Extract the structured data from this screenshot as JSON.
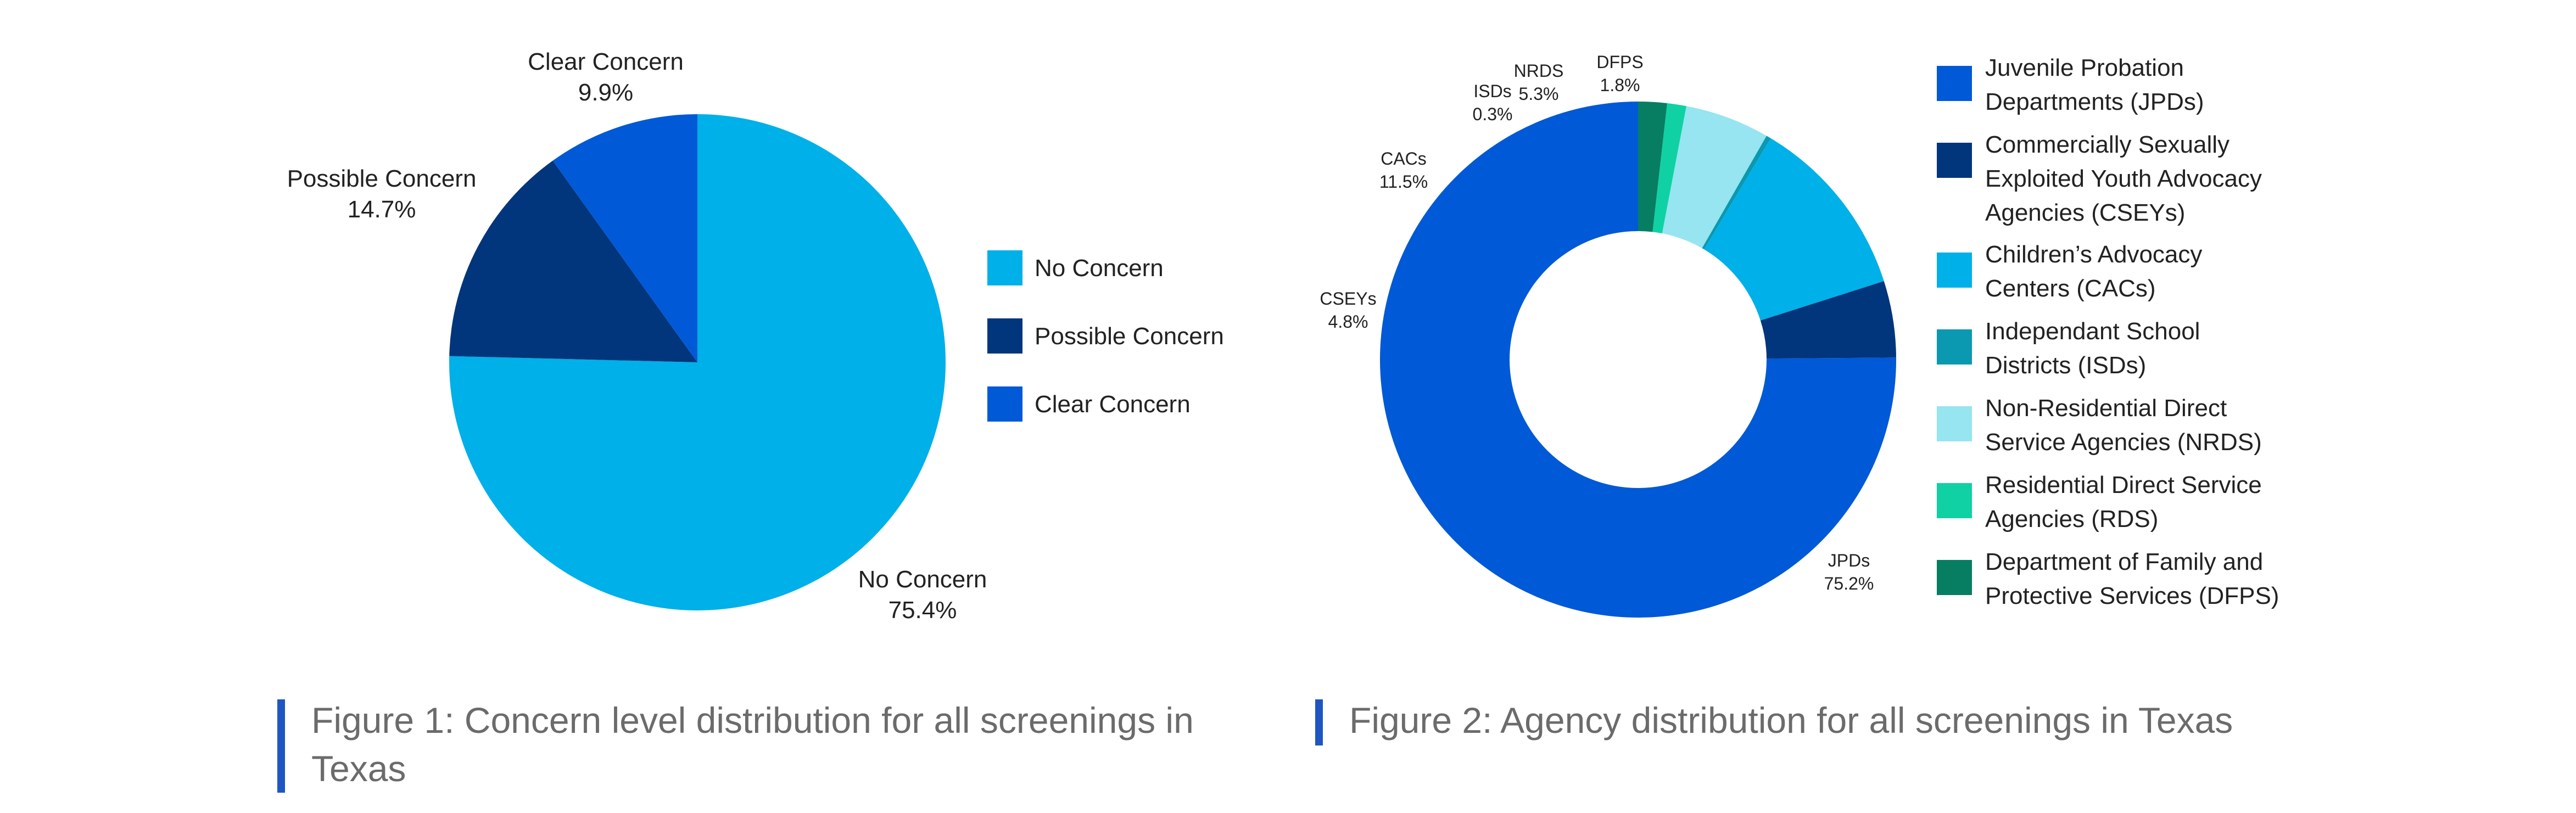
{
  "chart_data": [
    {
      "type": "pie",
      "title": "Figure 1: Concern level distribution for all screenings in Texas",
      "series": [
        {
          "name": "No Concern",
          "label": "No Concern",
          "value": 75.4,
          "display": "75.4%",
          "color": "#00b0e8"
        },
        {
          "name": "Possible Concern",
          "label": "Possible Concern",
          "value": 14.7,
          "display": "14.7%",
          "color": "#01357c"
        },
        {
          "name": "Clear Concern",
          "label": "Clear Concern",
          "value": 9.9,
          "display": "9.9%",
          "color": "#0059d6"
        }
      ],
      "legend": [
        {
          "label": "No Concern",
          "color": "#00b0e8"
        },
        {
          "label": "Possible Concern",
          "color": "#01357c"
        },
        {
          "label": "Clear Concern",
          "color": "#0059d6"
        }
      ],
      "legend_position": "right"
    },
    {
      "type": "pie",
      "subtype": "donut",
      "title": "Figure 2: Agency distribution for all screenings in Texas",
      "series": [
        {
          "name": "JPDs",
          "label": "JPDs",
          "value": 75.2,
          "display": "75.2%",
          "color": "#0059d6"
        },
        {
          "name": "CSEYs",
          "label": "CSEYs",
          "value": 4.8,
          "display": "4.8%",
          "color": "#01357c"
        },
        {
          "name": "CACs",
          "label": "CACs",
          "value": 11.5,
          "display": "11.5%",
          "color": "#00b0e8"
        },
        {
          "name": "ISDs",
          "label": "ISDs",
          "value": 0.3,
          "display": "0.3%",
          "color": "#0a99b0"
        },
        {
          "name": "NRDS",
          "label": "NRDS",
          "value": 5.3,
          "display": "5.3%",
          "color": "#96e5f0"
        },
        {
          "name": "RDS",
          "label": "",
          "value": 1.2,
          "display": "",
          "color": "#10d1a3"
        },
        {
          "name": "DFPS",
          "label": "DFPS",
          "value": 1.8,
          "display": "1.8%",
          "color": "#077e62"
        }
      ],
      "legend": [
        {
          "lines": [
            "Juvenile Probation",
            "Departments (JPDs)"
          ],
          "color": "#0059d6"
        },
        {
          "lines": [
            "Commercially Sexually",
            "Exploited Youth Advocacy",
            "Agencies (CSEYs)"
          ],
          "color": "#01357c"
        },
        {
          "lines": [
            "Children’s Advocacy",
            "Centers (CACs)"
          ],
          "color": "#00b0e8"
        },
        {
          "lines": [
            "Independant School",
            "Districts (ISDs)"
          ],
          "color": "#0a99b0"
        },
        {
          "lines": [
            "Non-Residential Direct",
            "Service Agencies (NRDS)"
          ],
          "color": "#96e5f0"
        },
        {
          "lines": [
            "Residential Direct Service",
            "Agencies (RDS)"
          ],
          "color": "#10d1a3"
        },
        {
          "lines": [
            "Department of Family and",
            "Protective Services (DFPS)"
          ],
          "color": "#077e62"
        }
      ],
      "legend_position": "right"
    }
  ],
  "captions": {
    "fig1": "Figure 1: Concern level distribution for all screenings in Texas",
    "fig2": "Figure 2: Agency distribution for all screenings in Texas"
  }
}
